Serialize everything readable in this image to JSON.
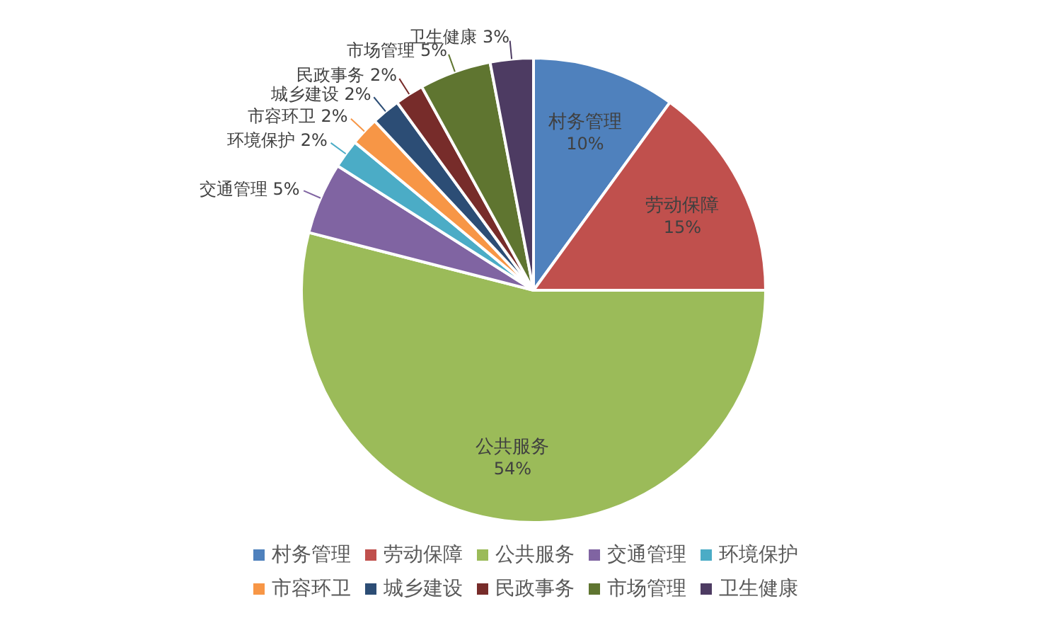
{
  "chart_data": {
    "type": "pie",
    "categories": [
      "村务管理",
      "劳动保障",
      "公共服务",
      "交通管理",
      "环境保护",
      "市容环卫",
      "城乡建设",
      "民政事务",
      "市场管理",
      "卫生健康"
    ],
    "values": [
      10,
      15,
      54,
      5,
      2,
      2,
      2,
      2,
      5,
      3
    ],
    "value_labels": [
      "10%",
      "15%",
      "54%",
      "5%",
      "2%",
      "2%",
      "2%",
      "2%",
      "5%",
      "3%"
    ],
    "colors": [
      "#4f81bd",
      "#c0504d",
      "#9bbb59",
      "#8064a2",
      "#4bacc6",
      "#f79646",
      "#2c4d75",
      "#772c2a",
      "#5f7530",
      "#4d3b62"
    ],
    "legend": "bottom"
  }
}
